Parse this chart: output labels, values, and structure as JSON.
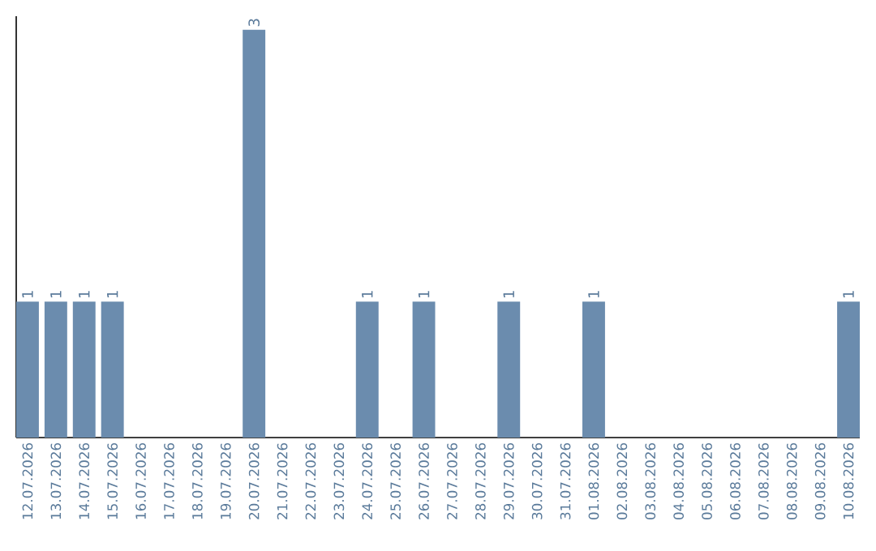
{
  "chart_data": {
    "type": "bar",
    "categories": [
      "12.07.2026",
      "13.07.2026",
      "14.07.2026",
      "15.07.2026",
      "16.07.2026",
      "17.07.2026",
      "18.07.2026",
      "19.07.2026",
      "20.07.2026",
      "21.07.2026",
      "22.07.2026",
      "23.07.2026",
      "24.07.2026",
      "25.07.2026",
      "26.07.2026",
      "27.07.2026",
      "28.07.2026",
      "29.07.2026",
      "30.07.2026",
      "31.07.2026",
      "01.08.2026",
      "02.08.2026",
      "03.08.2026",
      "04.08.2026",
      "05.08.2026",
      "06.08.2026",
      "07.08.2026",
      "08.08.2026",
      "09.08.2026",
      "10.08.2026"
    ],
    "values": [
      1,
      1,
      1,
      1,
      0,
      0,
      0,
      0,
      3,
      0,
      0,
      0,
      1,
      0,
      1,
      0,
      0,
      1,
      0,
      0,
      1,
      0,
      0,
      0,
      0,
      0,
      0,
      0,
      0,
      1
    ],
    "value_labels": [
      "1",
      "1",
      "1",
      "1",
      null,
      null,
      null,
      null,
      "3",
      null,
      null,
      null,
      "1",
      null,
      "1",
      null,
      null,
      "1",
      null,
      null,
      "1",
      null,
      null,
      null,
      null,
      null,
      null,
      null,
      null,
      "1"
    ],
    "color": "#6b8cae",
    "ylim": [
      0,
      3.1
    ],
    "grid": false,
    "tick_labels": "x"
  }
}
